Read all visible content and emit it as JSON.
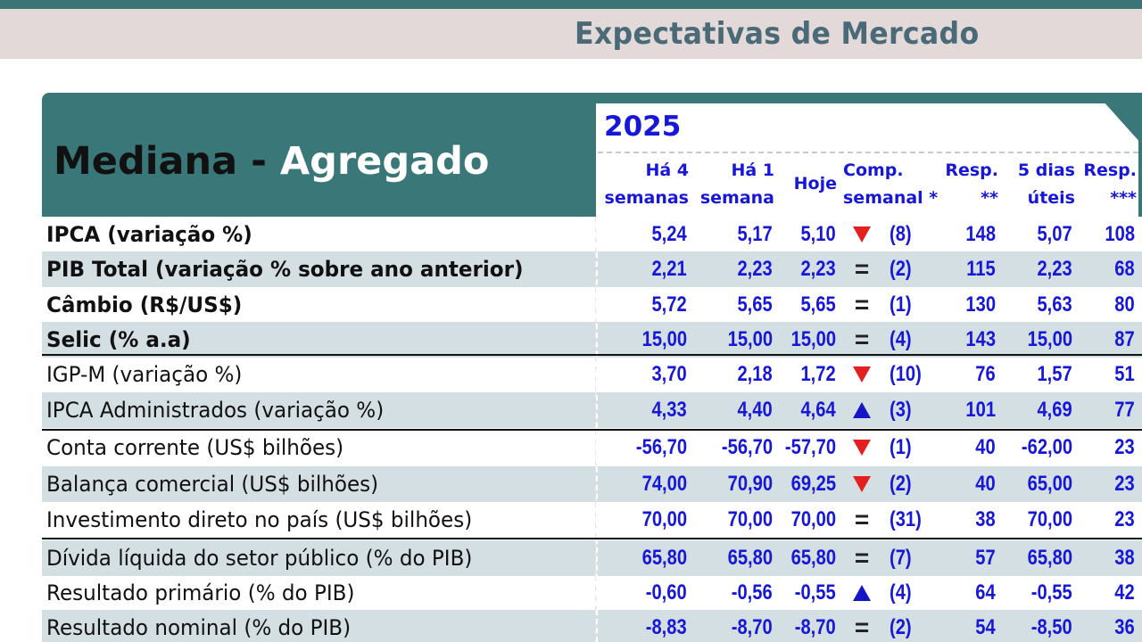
{
  "page_title": "Expectativas de Mercado",
  "panel": {
    "title_part1": "Mediana - ",
    "title_part2": "Agregado"
  },
  "year": "2025",
  "columns": {
    "ha4": [
      "Há 4",
      "semanas"
    ],
    "ha1": [
      "Há 1",
      "semana"
    ],
    "hoje": "Hoje",
    "comp": [
      "Comp.",
      "semanal *"
    ],
    "resp": [
      "Resp.",
      "**"
    ],
    "dias5": [
      "5 dias",
      "úteis"
    ],
    "resp3": [
      "Resp.",
      "***"
    ]
  },
  "rows": [
    {
      "label": "IPCA (variação %)",
      "bold": true,
      "ha4": "5,24",
      "ha1": "5,17",
      "hoje": "5,10",
      "trend": "down",
      "comp": "(8)",
      "resp": "148",
      "dias5": "5,07",
      "resp3": "108"
    },
    {
      "label": "PIB Total (variação % sobre ano anterior)",
      "bold": true,
      "ha4": "2,21",
      "ha1": "2,23",
      "hoje": "2,23",
      "trend": "equal",
      "comp": "(2)",
      "resp": "115",
      "dias5": "2,23",
      "resp3": "68"
    },
    {
      "label": "Câmbio (R$/US$)",
      "bold": true,
      "ha4": "5,72",
      "ha1": "5,65",
      "hoje": "5,65",
      "trend": "equal",
      "comp": "(1)",
      "resp": "130",
      "dias5": "5,63",
      "resp3": "80"
    },
    {
      "label": "Selic (% a.a)",
      "bold": true,
      "ha4": "15,00",
      "ha1": "15,00",
      "hoje": "15,00",
      "trend": "equal",
      "comp": "(4)",
      "resp": "143",
      "dias5": "15,00",
      "resp3": "87"
    },
    {
      "label": "IGP-M (variação %)",
      "bold": false,
      "ha4": "3,70",
      "ha1": "2,18",
      "hoje": "1,72",
      "trend": "down",
      "comp": "(10)",
      "resp": "76",
      "dias5": "1,57",
      "resp3": "51"
    },
    {
      "label": "IPCA Administrados (variação %)",
      "bold": false,
      "ha4": "4,33",
      "ha1": "4,40",
      "hoje": "4,64",
      "trend": "up",
      "comp": "(3)",
      "resp": "101",
      "dias5": "4,69",
      "resp3": "77"
    },
    {
      "label": "Conta corrente (US$ bilhões)",
      "bold": false,
      "ha4": "-56,70",
      "ha1": "-56,70",
      "hoje": "-57,70",
      "trend": "down",
      "comp": "(1)",
      "resp": "40",
      "dias5": "-62,00",
      "resp3": "23"
    },
    {
      "label": "Balança comercial (US$ bilhões)",
      "bold": false,
      "ha4": "74,00",
      "ha1": "70,90",
      "hoje": "69,25",
      "trend": "down",
      "comp": "(2)",
      "resp": "40",
      "dias5": "65,00",
      "resp3": "23"
    },
    {
      "label": "Investimento direto no país (US$ bilhões)",
      "bold": false,
      "ha4": "70,00",
      "ha1": "70,00",
      "hoje": "70,00",
      "trend": "equal",
      "comp": "(31)",
      "resp": "38",
      "dias5": "70,00",
      "resp3": "23"
    },
    {
      "label": "Dívida líquida do setor público (% do PIB)",
      "bold": false,
      "ha4": "65,80",
      "ha1": "65,80",
      "hoje": "65,80",
      "trend": "equal",
      "comp": "(7)",
      "resp": "57",
      "dias5": "65,80",
      "resp3": "38"
    },
    {
      "label": "Resultado primário (% do PIB)",
      "bold": false,
      "ha4": "-0,60",
      "ha1": "-0,56",
      "hoje": "-0,55",
      "trend": "up",
      "comp": "(4)",
      "resp": "64",
      "dias5": "-0,55",
      "resp3": "42"
    },
    {
      "label": "Resultado nominal (% do PIB)",
      "bold": false,
      "ha4": "-8,83",
      "ha1": "-8,70",
      "hoje": "-8,70",
      "trend": "equal",
      "comp": "(2)",
      "resp": "54",
      "dias5": "-8,50",
      "resp3": "36"
    }
  ],
  "colors": {
    "accent_teal": "#3a7779",
    "value_blue": "#1717d8",
    "trend_down": "#e41f1f",
    "trend_up": "#1515c8",
    "band": "#e2d9d8",
    "row_alt": "#d4dfe3"
  }
}
